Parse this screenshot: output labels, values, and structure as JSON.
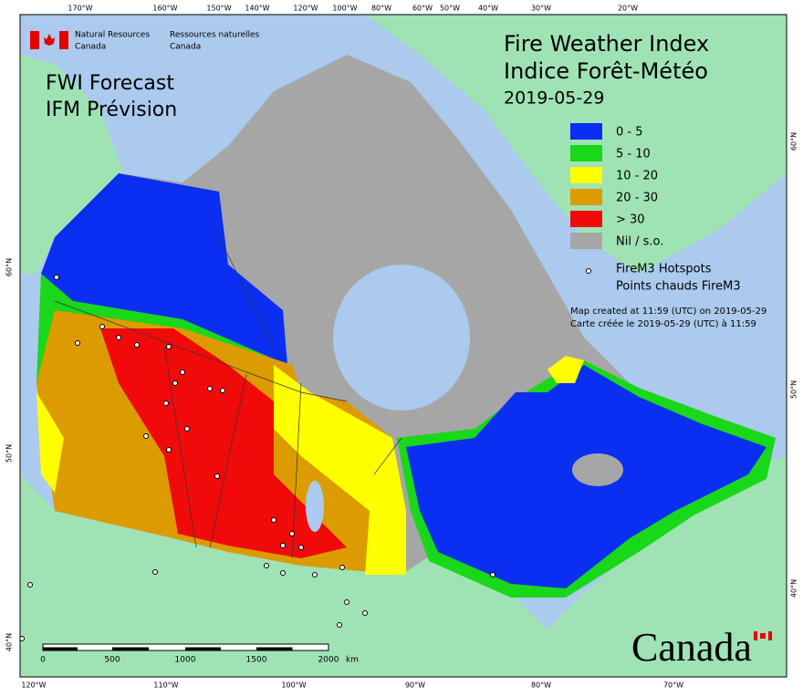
{
  "header": {
    "agency_en": [
      "Natural Resources",
      "Canada"
    ],
    "agency_fr": [
      "Ressources naturelles",
      "Canada"
    ]
  },
  "title": [
    "Fire Weather Index",
    "Indice Forêt-Météo"
  ],
  "date": "2019-05-29",
  "product": [
    "FWI Forecast",
    "IFM Prévision"
  ],
  "legend": [
    {
      "label": "0 - 5",
      "color": "#0a2ff0"
    },
    {
      "label": "5 - 10",
      "color": "#19d719"
    },
    {
      "label": "10 - 20",
      "color": "#ffff00"
    },
    {
      "label": "20 - 30",
      "color": "#dc9b00"
    },
    {
      "label": "> 30",
      "color": "#f00a0a"
    },
    {
      "label": "Nil / s.o.",
      "color": "#a6a6a6"
    }
  ],
  "hotspots": [
    "FireM3 Hotspots",
    "Points chauds FireM3"
  ],
  "credit": [
    "Map created at 11:59 (UTC) on 2019-05-29",
    "Carte créée le 2019-05-29 (UTC) à 11:59"
  ],
  "graticule": {
    "top": [
      "170°W",
      "160°W",
      "150°W",
      "140°W",
      "120°W",
      "100°W",
      "80°W",
      "60°W",
      "50°W",
      "40°W",
      "30°W",
      "20°W"
    ],
    "bottom": [
      "120°W",
      "110°W",
      "100°W",
      "90°W",
      "80°W",
      "70°W"
    ],
    "left": [
      "60°N",
      "50°N",
      "40°N"
    ],
    "right": [
      "60°N",
      "50°N",
      "40°N"
    ]
  },
  "scale_bar": {
    "labels": [
      0,
      500,
      1000,
      1500,
      2000
    ],
    "unit": "km"
  },
  "wordmark": "Canada"
}
